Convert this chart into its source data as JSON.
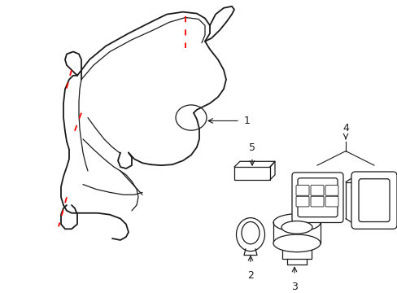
{
  "bg_color": "#ffffff",
  "line_color": "#1a1a1a",
  "red_dash_color": "#ff0000",
  "label_color": "#000000",
  "fig_width": 4.89,
  "fig_height": 3.6,
  "dpi": 100
}
